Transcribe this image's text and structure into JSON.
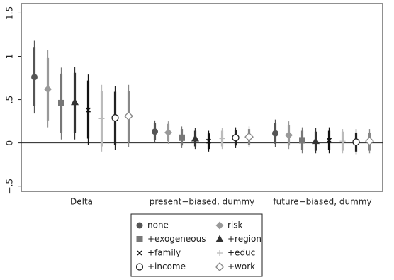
{
  "chart_data": {
    "type": "coefplot",
    "categories": [
      "Delta",
      "present−biased, dummy",
      "future−biased, dummy"
    ],
    "ylim": [
      -0.56,
      1.61
    ],
    "yticks": [
      {
        "value": -0.5,
        "label": "−.5"
      },
      0,
      {
        "value": 0.5,
        "label": ".5"
      },
      1,
      1.5
    ],
    "zero_line": true,
    "series": [
      {
        "name": "none",
        "color": "#555555",
        "marker": "circle",
        "values": [
          0.76,
          0.13,
          0.11
        ],
        "ci95_low": [
          0.34,
          0.0,
          -0.05
        ],
        "ci95_high": [
          1.18,
          0.26,
          0.27
        ],
        "ci90_low": [
          0.43,
          0.03,
          -0.01
        ],
        "ci90_high": [
          1.1,
          0.23,
          0.23
        ]
      },
      {
        "name": "risk",
        "color": "#999999",
        "marker": "diamond",
        "values": [
          0.62,
          0.12,
          0.09
        ],
        "ci95_low": [
          0.18,
          -0.01,
          -0.07
        ],
        "ci95_high": [
          1.07,
          0.25,
          0.25
        ],
        "ci90_low": [
          0.26,
          0.02,
          -0.03
        ],
        "ci90_high": [
          0.98,
          0.22,
          0.21
        ]
      },
      {
        "name": "+exogeneous",
        "color": "#777777",
        "marker": "square",
        "values": [
          0.46,
          0.06,
          0.03
        ],
        "ci95_low": [
          0.04,
          -0.06,
          -0.12
        ],
        "ci95_high": [
          0.87,
          0.19,
          0.18
        ],
        "ci90_low": [
          0.12,
          -0.03,
          -0.08
        ],
        "ci90_high": [
          0.8,
          0.16,
          0.14
        ]
      },
      {
        "name": "+region",
        "color": "#333333",
        "marker": "triangle",
        "values": [
          0.47,
          0.05,
          0.02
        ],
        "ci95_low": [
          0.04,
          -0.07,
          -0.12
        ],
        "ci95_high": [
          0.88,
          0.17,
          0.17
        ],
        "ci90_low": [
          0.12,
          -0.04,
          -0.09
        ],
        "ci90_high": [
          0.81,
          0.14,
          0.13
        ]
      },
      {
        "name": "+family",
        "color": "#111111",
        "marker": "x",
        "values": [
          0.38,
          0.02,
          0.03
        ],
        "ci95_low": [
          -0.02,
          -0.1,
          -0.12
        ],
        "ci95_high": [
          0.79,
          0.14,
          0.18
        ],
        "ci90_low": [
          0.05,
          -0.07,
          -0.08
        ],
        "ci90_high": [
          0.72,
          0.11,
          0.14
        ]
      },
      {
        "name": "+educ",
        "color": "#bbbbbb",
        "marker": "plus",
        "values": [
          0.28,
          0.05,
          0.02
        ],
        "ci95_low": [
          -0.1,
          -0.07,
          -0.12
        ],
        "ci95_high": [
          0.67,
          0.17,
          0.16
        ],
        "ci90_low": [
          -0.04,
          -0.04,
          -0.09
        ],
        "ci90_high": [
          0.6,
          0.14,
          0.13
        ]
      },
      {
        "name": "+income",
        "color": "#222222",
        "marker": "circle-open",
        "values": [
          0.29,
          0.06,
          0.01
        ],
        "ci95_low": [
          -0.08,
          -0.06,
          -0.13
        ],
        "ci95_high": [
          0.66,
          0.18,
          0.16
        ],
        "ci90_low": [
          -0.02,
          -0.03,
          -0.1
        ],
        "ci90_high": [
          0.59,
          0.15,
          0.12
        ]
      },
      {
        "name": "+work",
        "color": "#888888",
        "marker": "diamond-open",
        "values": [
          0.31,
          0.07,
          0.02
        ],
        "ci95_low": [
          -0.05,
          -0.05,
          -0.12
        ],
        "ci95_high": [
          0.67,
          0.19,
          0.16
        ],
        "ci90_low": [
          0.01,
          -0.02,
          -0.09
        ],
        "ci90_high": [
          0.6,
          0.16,
          0.12
        ]
      }
    ]
  }
}
